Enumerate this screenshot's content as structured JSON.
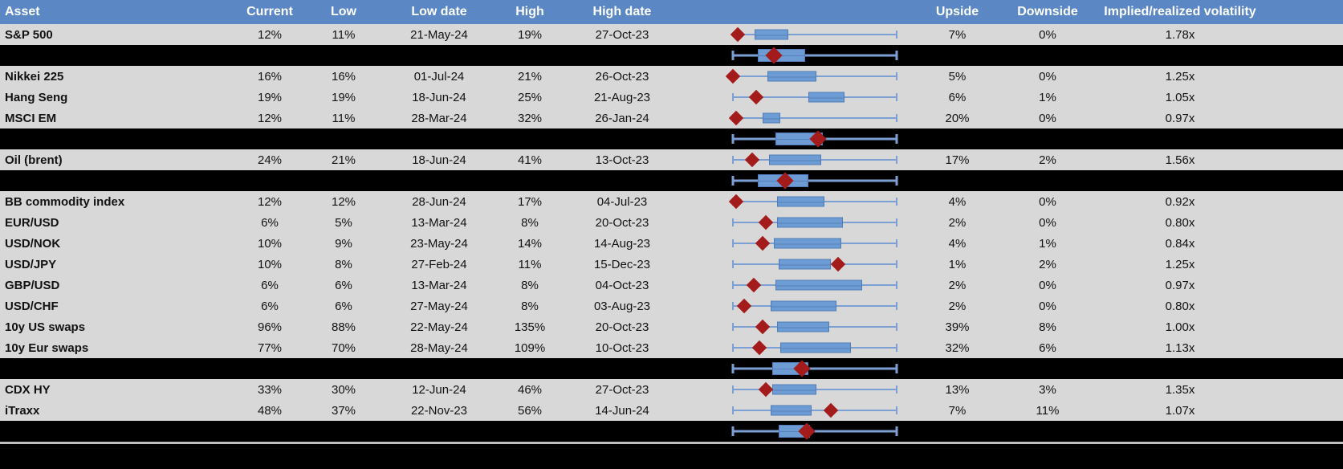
{
  "colors": {
    "header_bg": "#5B88C4",
    "header_text": "#FFFFFF",
    "row_bg": "#D8D8D8",
    "separator_row_bg": "#000000",
    "box_fill": "#6D9BD3",
    "box_border": "#4F7CB6",
    "whisker": "#7CA0D4",
    "marker_diamond": "#A31B1B",
    "footer_line": "#BFBFBF"
  },
  "header": {
    "asset": "Asset",
    "current": "Current",
    "low": "Low",
    "low_date": "Low date",
    "high": "High",
    "high_date": "High date",
    "plot": "",
    "upside": "Upside",
    "downside": "Downside",
    "vol_ratio": "Implied/realized volatility"
  },
  "chart_data": {
    "type": "table",
    "columns": [
      "Asset",
      "Current",
      "Low",
      "Low date",
      "High",
      "High date",
      "Upside",
      "Downside",
      "Implied/realized volatility"
    ],
    "boxplot_scale": "normalized 0-1 across each row's low-high whisker span; marker = current level",
    "rows": [
      {
        "type": "asset",
        "asset": "S&P 500",
        "current": "12%",
        "low": "11%",
        "low_date": "21-May-24",
        "high": "19%",
        "high_date": "27-Oct-23",
        "upside": "7%",
        "downside": "0%",
        "vol_ratio": "1.78x",
        "plot": {
          "whisker": [
            0.02,
            1.0
          ],
          "box": [
            0.13,
            0.34
          ],
          "marker": 0.03
        }
      },
      {
        "type": "summary",
        "plot": {
          "whisker": [
            0.0,
            1.0
          ],
          "box": [
            0.15,
            0.44
          ],
          "marker": 0.25
        }
      },
      {
        "type": "asset",
        "asset": "Nikkei 225",
        "current": "16%",
        "low": "16%",
        "low_date": "01-Jul-24",
        "high": "21%",
        "high_date": "26-Oct-23",
        "upside": "5%",
        "downside": "0%",
        "vol_ratio": "1.25x",
        "plot": {
          "whisker": [
            0.0,
            1.0
          ],
          "box": [
            0.21,
            0.51
          ],
          "marker": 0.0
        }
      },
      {
        "type": "asset",
        "asset": "Hang Seng",
        "current": "19%",
        "low": "19%",
        "low_date": "18-Jun-24",
        "high": "25%",
        "high_date": "21-Aug-23",
        "upside": "6%",
        "downside": "1%",
        "vol_ratio": "1.05x",
        "plot": {
          "whisker": [
            0.0,
            1.0
          ],
          "box": [
            0.46,
            0.68
          ],
          "marker": 0.14
        }
      },
      {
        "type": "asset",
        "asset": "MSCI EM",
        "current": "12%",
        "low": "11%",
        "low_date": "28-Mar-24",
        "high": "32%",
        "high_date": "26-Jan-24",
        "upside": "20%",
        "downside": "0%",
        "vol_ratio": "0.97x",
        "plot": {
          "whisker": [
            0.0,
            1.0
          ],
          "box": [
            0.18,
            0.29
          ],
          "marker": 0.02
        }
      },
      {
        "type": "summary",
        "plot": {
          "whisker": [
            0.0,
            1.0
          ],
          "box": [
            0.26,
            0.55
          ],
          "marker": 0.52
        }
      },
      {
        "type": "asset",
        "asset": "Oil (brent)",
        "current": "24%",
        "low": "21%",
        "low_date": "18-Jun-24",
        "high": "41%",
        "high_date": "13-Oct-23",
        "upside": "17%",
        "downside": "2%",
        "vol_ratio": "1.56x",
        "plot": {
          "whisker": [
            0.0,
            1.0
          ],
          "box": [
            0.22,
            0.54
          ],
          "marker": 0.12
        }
      },
      {
        "type": "summary",
        "plot": {
          "whisker": [
            0.0,
            1.0
          ],
          "box": [
            0.15,
            0.46
          ],
          "marker": 0.32
        }
      },
      {
        "type": "asset",
        "asset": "BB commodity index",
        "current": "12%",
        "low": "12%",
        "low_date": "28-Jun-24",
        "high": "17%",
        "high_date": "04-Jul-23",
        "upside": "4%",
        "downside": "0%",
        "vol_ratio": "0.92x",
        "plot": {
          "whisker": [
            0.0,
            1.0
          ],
          "box": [
            0.27,
            0.56
          ],
          "marker": 0.02
        }
      },
      {
        "type": "asset",
        "asset": "EUR/USD",
        "current": "6%",
        "low": "5%",
        "low_date": "13-Mar-24",
        "high": "8%",
        "high_date": "20-Oct-23",
        "upside": "2%",
        "downside": "0%",
        "vol_ratio": "0.80x",
        "plot": {
          "whisker": [
            0.0,
            1.0
          ],
          "box": [
            0.27,
            0.67
          ],
          "marker": 0.2
        }
      },
      {
        "type": "asset",
        "asset": "USD/NOK",
        "current": "10%",
        "low": "9%",
        "low_date": "23-May-24",
        "high": "14%",
        "high_date": "14-Aug-23",
        "upside": "4%",
        "downside": "1%",
        "vol_ratio": "0.84x",
        "plot": {
          "whisker": [
            0.0,
            1.0
          ],
          "box": [
            0.25,
            0.66
          ],
          "marker": 0.18
        }
      },
      {
        "type": "asset",
        "asset": "USD/JPY",
        "current": "10%",
        "low": "8%",
        "low_date": "27-Feb-24",
        "high": "11%",
        "high_date": "15-Dec-23",
        "upside": "1%",
        "downside": "2%",
        "vol_ratio": "1.25x",
        "plot": {
          "whisker": [
            0.0,
            1.0
          ],
          "box": [
            0.28,
            0.6
          ],
          "marker": 0.64
        }
      },
      {
        "type": "asset",
        "asset": "GBP/USD",
        "current": "6%",
        "low": "6%",
        "low_date": "13-Mar-24",
        "high": "8%",
        "high_date": "04-Oct-23",
        "upside": "2%",
        "downside": "0%",
        "vol_ratio": "0.97x",
        "plot": {
          "whisker": [
            0.0,
            1.0
          ],
          "box": [
            0.26,
            0.79
          ],
          "marker": 0.125
        }
      },
      {
        "type": "asset",
        "asset": "USD/CHF",
        "current": "6%",
        "low": "6%",
        "low_date": "27-May-24",
        "high": "8%",
        "high_date": "03-Aug-23",
        "upside": "2%",
        "downside": "0%",
        "vol_ratio": "0.80x",
        "plot": {
          "whisker": [
            0.0,
            1.0
          ],
          "box": [
            0.23,
            0.63
          ],
          "marker": 0.07
        }
      },
      {
        "type": "asset",
        "asset": "10y US swaps",
        "current": "96%",
        "low": "88%",
        "low_date": "22-May-24",
        "high": "135%",
        "high_date": "20-Oct-23",
        "upside": "39%",
        "downside": "8%",
        "vol_ratio": "1.00x",
        "plot": {
          "whisker": [
            0.0,
            1.0
          ],
          "box": [
            0.27,
            0.59
          ],
          "marker": 0.18
        }
      },
      {
        "type": "asset",
        "asset": "10y Eur swaps",
        "current": "77%",
        "low": "70%",
        "low_date": "28-May-24",
        "high": "109%",
        "high_date": "10-Oct-23",
        "upside": "32%",
        "downside": "6%",
        "vol_ratio": "1.13x",
        "plot": {
          "whisker": [
            0.0,
            1.0
          ],
          "box": [
            0.29,
            0.72
          ],
          "marker": 0.16
        }
      },
      {
        "type": "summary",
        "plot": {
          "whisker": [
            0.0,
            1.0
          ],
          "box": [
            0.24,
            0.46
          ],
          "marker": 0.42
        }
      },
      {
        "type": "asset",
        "asset": "CDX HY",
        "current": "33%",
        "low": "30%",
        "low_date": "12-Jun-24",
        "high": "46%",
        "high_date": "27-Oct-23",
        "upside": "13%",
        "downside": "3%",
        "vol_ratio": "1.35x",
        "plot": {
          "whisker": [
            0.0,
            1.0
          ],
          "box": [
            0.24,
            0.51
          ],
          "marker": 0.2
        }
      },
      {
        "type": "asset",
        "asset": "iTraxx",
        "current": "48%",
        "low": "37%",
        "low_date": "22-Nov-23",
        "high": "56%",
        "high_date": "14-Jun-24",
        "upside": "7%",
        "downside": "11%",
        "vol_ratio": "1.07x",
        "plot": {
          "whisker": [
            0.0,
            1.0
          ],
          "box": [
            0.23,
            0.48
          ],
          "marker": 0.6
        }
      },
      {
        "type": "summary",
        "plot": {
          "whisker": [
            0.0,
            1.0
          ],
          "box": [
            0.28,
            0.47
          ],
          "marker": 0.45
        }
      }
    ]
  }
}
